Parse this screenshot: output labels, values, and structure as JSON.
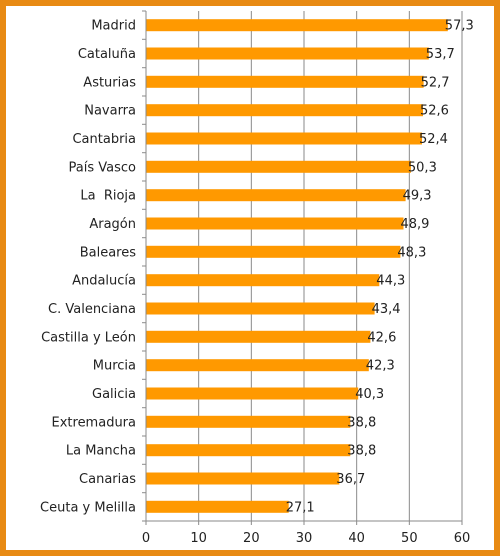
{
  "chart_data": {
    "type": "bar",
    "orientation": "horizontal",
    "categories": [
      "Madrid",
      "Cataluña",
      "Asturias",
      "Navarra",
      "Cantabria",
      "País Vasco",
      "La  Rioja",
      "Aragón",
      "Baleares",
      "Andalucía",
      "C. Valenciana",
      "Castilla y León",
      "Murcia",
      "Galicia",
      "Extremadura",
      "La Mancha",
      "Canarias",
      "Ceuta y Melilla"
    ],
    "values": [
      57.3,
      53.7,
      52.7,
      52.6,
      52.4,
      50.3,
      49.3,
      48.9,
      48.3,
      44.3,
      43.4,
      42.6,
      42.3,
      40.3,
      38.8,
      38.8,
      36.7,
      27.1
    ],
    "value_labels": [
      "57,3",
      "53,7",
      "52,7",
      "52,6",
      "52,4",
      "50,3",
      "49,3",
      "48,9",
      "48,3",
      "44,3",
      "43,4",
      "42,6",
      "42,3",
      "40,3",
      "38,8",
      "38,8",
      "36,7",
      "27,1"
    ],
    "xlim": [
      0,
      60
    ],
    "xticks": [
      0,
      10,
      20,
      30,
      40,
      50,
      60
    ],
    "xtick_labels": [
      "0",
      "10",
      "20",
      "30",
      "40",
      "50",
      "60"
    ],
    "grid": true,
    "bar_color": "#FF9900",
    "border_color": "#E88A14",
    "title": "",
    "xlabel": "",
    "ylabel": ""
  }
}
